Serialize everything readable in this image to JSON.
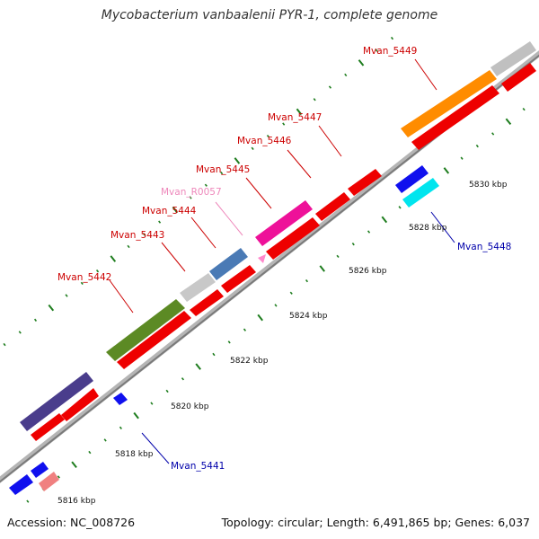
{
  "title": "Mycobacterium vanbaalenii PYR-1, complete genome",
  "footer": {
    "accession": "Accession: NC_008726",
    "summary": "Topology: circular; Length: 6,491,865 bp; Genes: 6,037"
  },
  "colors": {
    "backbone": "#8c8c8c",
    "tick": "#1e7d1e",
    "label_red": "#cc0000",
    "label_blue": "#0000aa",
    "label_pink": "#ee88bb"
  },
  "scale_labels": [
    {
      "kbp": 5816,
      "text": "5816 kbp"
    },
    {
      "kbp": 5818,
      "text": "5818 kbp"
    },
    {
      "kbp": 5820,
      "text": "5820 kbp"
    },
    {
      "kbp": 5822,
      "text": "5822 kbp"
    },
    {
      "kbp": 5824,
      "text": "5824 kbp"
    },
    {
      "kbp": 5826,
      "text": "5826 kbp"
    },
    {
      "kbp": 5828,
      "text": "5828 kbp"
    },
    {
      "kbp": 5830,
      "text": "5830 kbp"
    }
  ],
  "gene_labels": [
    {
      "text": "Mvan_5449",
      "color": "red"
    },
    {
      "text": "Mvan_5447",
      "color": "red"
    },
    {
      "text": "Mvan_5446",
      "color": "red"
    },
    {
      "text": "Mvan_5445",
      "color": "red"
    },
    {
      "text": "Mvan_R0057",
      "color": "pink"
    },
    {
      "text": "Mvan_5444",
      "color": "red"
    },
    {
      "text": "Mvan_5443",
      "color": "red"
    },
    {
      "text": "Mvan_5442",
      "color": "red"
    },
    {
      "text": "Mvan_5448",
      "color": "blue"
    },
    {
      "text": "Mvan_5441",
      "color": "blue"
    }
  ]
}
